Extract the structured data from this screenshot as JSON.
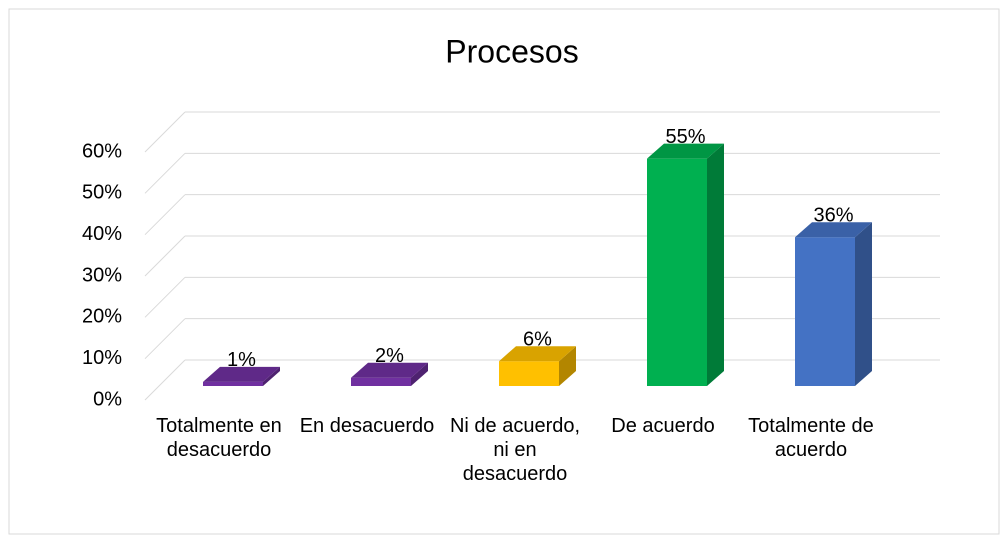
{
  "chart_data": {
    "type": "bar3d",
    "title": "Procesos",
    "categories": [
      "Totalmente en desacuerdo",
      "En desacuerdo",
      "Ni de acuerdo, ni en desacuerdo",
      "De acuerdo",
      "Totalmente de acuerdo"
    ],
    "values": [
      1,
      2,
      6,
      55,
      36
    ],
    "value_labels": [
      "1%",
      "2%",
      "6%",
      "55%",
      "36%"
    ],
    "colors": [
      "#7030a0",
      "#7030a0",
      "#ffc000",
      "#00b050",
      "#4472c4"
    ],
    "ylim": [
      0,
      60
    ],
    "yticks": [
      {
        "value": 0,
        "label": "0%"
      },
      {
        "value": 10,
        "label": "10%"
      },
      {
        "value": 20,
        "label": "20%"
      },
      {
        "value": 30,
        "label": "30%"
      },
      {
        "value": 40,
        "label": "40%"
      },
      {
        "value": 50,
        "label": "50%"
      },
      {
        "value": 60,
        "label": "60%"
      }
    ],
    "grid": true
  }
}
